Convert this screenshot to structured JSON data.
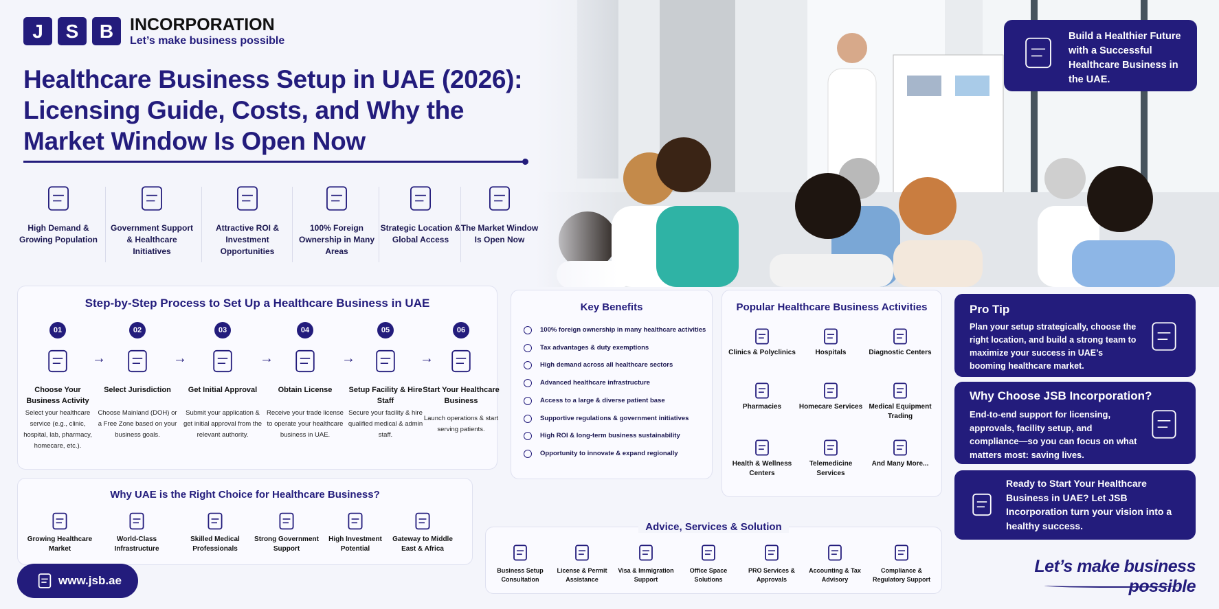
{
  "header": {
    "logo_letters": [
      "J",
      "S",
      "B"
    ],
    "company": "INCORPORATION",
    "tagline": "Let’s make business possible"
  },
  "title": "Healthcare Business Setup in UAE (2026): Licensing Guide, Costs, and Why the Market Window Is Open Now",
  "highlights": [
    "High Demand & Growing Population",
    "Government Support & Healthcare Initiatives",
    "Attractive ROI & Investment Opportunities",
    "100% Foreign Ownership in Many Areas",
    "Strategic Location & Global Access",
    "The Market Window Is Open Now"
  ],
  "banner": "Build a Healthier Future with a Successful Healthcare Business in the UAE.",
  "process": {
    "title": "Step-by-Step Process to Set Up a Healthcare Business in UAE",
    "steps": [
      {
        "number": "01",
        "title": "Choose Your Business Activity",
        "text": "Select your healthcare service (e.g., clinic, hospital, lab, pharmacy, homecare, etc.)."
      },
      {
        "number": "02",
        "title": "Select Jurisdiction",
        "text": "Choose Mainland (DOH) or a Free Zone based on your business goals."
      },
      {
        "number": "03",
        "title": "Get Initial Approval",
        "text": "Submit your application & get initial approval from the relevant authority."
      },
      {
        "number": "04",
        "title": "Obtain License",
        "text": "Receive your trade license to operate your healthcare business in UAE."
      },
      {
        "number": "05",
        "title": "Setup Facility & Hire Staff",
        "text": "Secure your facility & hire qualified medical & admin staff."
      },
      {
        "number": "06",
        "title": "Start Your Healthcare Business",
        "text": "Launch operations & start serving patients."
      }
    ]
  },
  "why_uae": {
    "title": "Why UAE is the Right Choice for Healthcare Business?",
    "items": [
      "Growing Healthcare Market",
      "World-Class Infrastructure",
      "Skilled Medical Professionals",
      "Strong Government Support",
      "High Investment Potential",
      "Gateway to Middle East & Africa"
    ]
  },
  "website": "www.jsb.ae",
  "key_benefits": {
    "title": "Key Benefits",
    "items": [
      "100% foreign ownership in many healthcare activities",
      "Tax advantages & duty exemptions",
      "High demand across all healthcare sectors",
      "Advanced healthcare infrastructure",
      "Access to a large & diverse patient base",
      "Supportive regulations & government initiatives",
      "High ROI & long-term business sustainability",
      "Opportunity to innovate & expand regionally"
    ]
  },
  "activities": {
    "title": "Popular Healthcare Business Activities",
    "items": [
      "Clinics & Polyclinics",
      "Hospitals",
      "Diagnostic Centers",
      "Pharmacies",
      "Homecare Services",
      "Medical Equipment Trading",
      "Health & Wellness Centers",
      "Telemedicine Services",
      "And Many More..."
    ]
  },
  "services": {
    "title": "Advice, Services & Solution",
    "items": [
      "Business Setup Consultation",
      "License & Permit Assistance",
      "Visa & Immigration Support",
      "Office Space Solutions",
      "PRO Services & Approvals",
      "Accounting & Tax Advisory",
      "Compliance & Regulatory Support"
    ]
  },
  "pro_tip": {
    "title": "Pro Tip",
    "text": "Plan your setup strategically, choose the right location, and build a strong team to maximize your success in UAE’s booming healthcare market."
  },
  "why_jsb": {
    "title": "Why Choose JSB Incorporation?",
    "text": "End-to-end support for licensing, approvals, facility setup, and compliance—so you can focus on what matters most: saving lives."
  },
  "cta": {
    "text": "Ready to Start Your Healthcare Business in UAE? Let JSB Incorporation turn your vision into a healthy success."
  },
  "slogan": "Let’s make business possible"
}
